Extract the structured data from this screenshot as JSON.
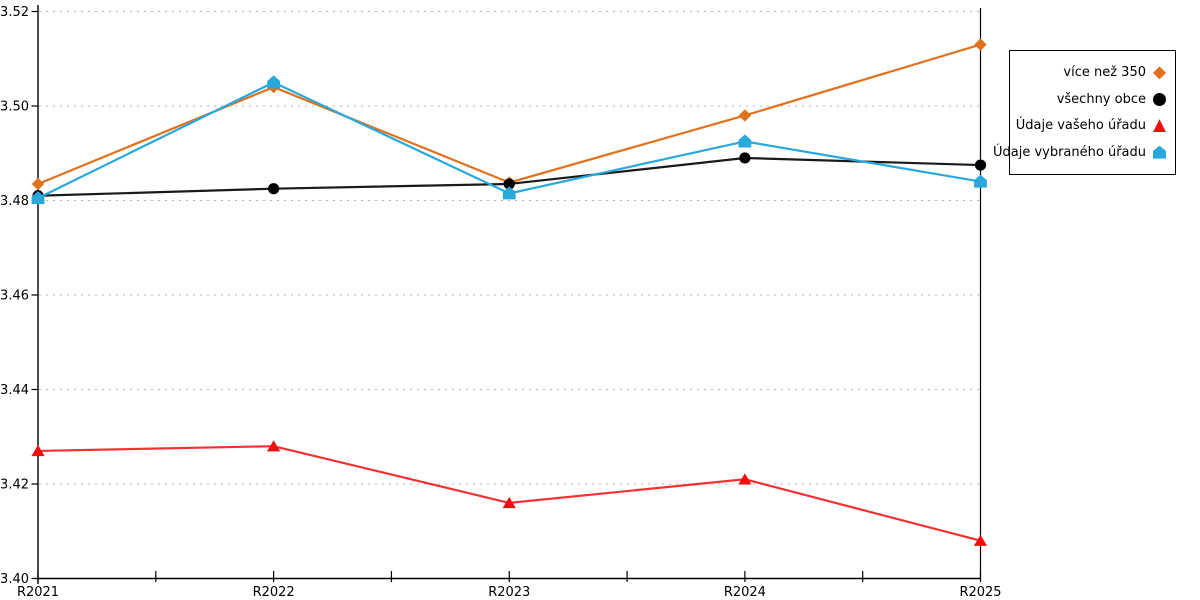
{
  "chart_data": {
    "type": "line",
    "title": "",
    "xlabel": "",
    "ylabel": "",
    "categories": [
      "R2021",
      "R2022",
      "R2023",
      "R2024",
      "R2025"
    ],
    "series": [
      {
        "name": "více než 350",
        "marker": "diamond",
        "color": "#E2711D",
        "values": [
          3.4835,
          3.504,
          3.4838,
          3.498,
          3.513
        ]
      },
      {
        "name": "všechny obce",
        "marker": "circle",
        "color": "#1a1a1a",
        "marker_color": "#000000",
        "values": [
          3.481,
          3.4825,
          3.4835,
          3.489,
          3.4875
        ]
      },
      {
        "name": "Údaje vašeho úřadu",
        "marker": "triangle",
        "color": "#F20D0D",
        "values": [
          3.427,
          3.428,
          3.416,
          3.421,
          3.408
        ]
      },
      {
        "name": "Údaje vybraného úřadu",
        "marker": "pentagon",
        "color": "#29A8DC",
        "values": [
          3.4805,
          3.505,
          3.4815,
          3.4925,
          3.484
        ]
      }
    ],
    "ylim": [
      3.4,
      3.52
    ],
    "ytick_step": 0.02,
    "ytick_labels": [
      "3.40",
      "3.42",
      "3.44",
      "3.46",
      "3.48",
      "3.50",
      "3.52"
    ],
    "xtick_minor_between_categories": true,
    "grid": "horizontal-dashed",
    "grid_color": "#b5b5b5",
    "axis_color": "#000000",
    "legend_position": "outside-top-right",
    "legend_order": [
      "více než 350",
      "všechny obce",
      "Údaje vašeho úřadu",
      "Údaje vybraného úřadu"
    ]
  }
}
